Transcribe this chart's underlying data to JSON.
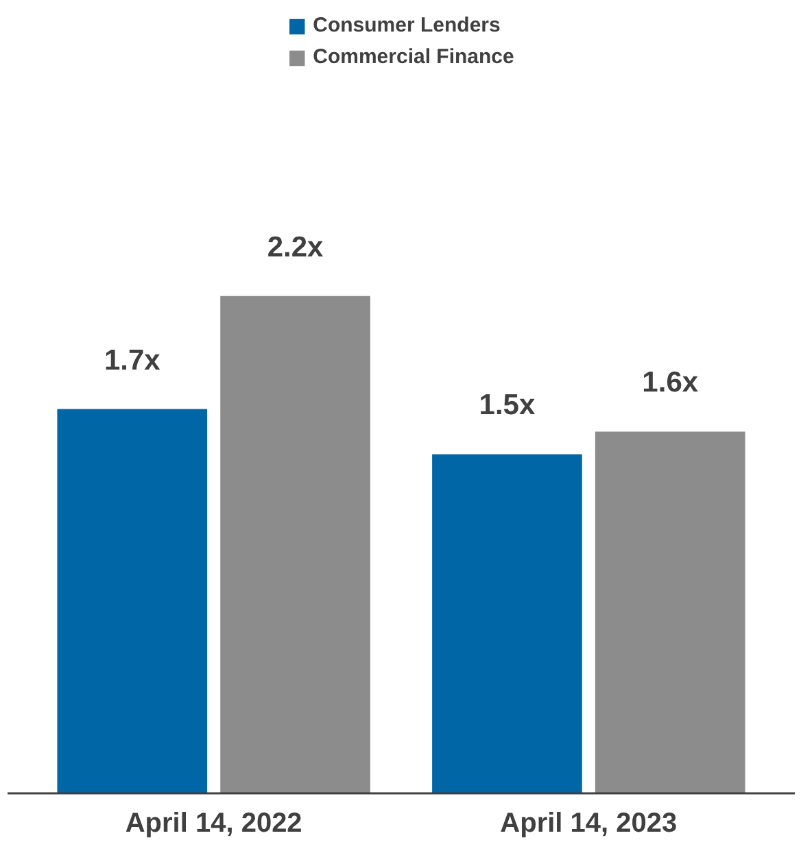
{
  "chart_data": {
    "type": "bar",
    "categories": [
      "April 14, 2022",
      "April 14, 2023"
    ],
    "series": [
      {
        "name": "Consumer Lenders",
        "color": "#0066a6",
        "values": [
          1.7,
          1.5
        ],
        "value_labels": [
          "1.7x",
          "1.5x"
        ]
      },
      {
        "name": "Commercial Finance",
        "color": "#8c8c8c",
        "values": [
          2.2,
          1.6
        ],
        "value_labels": [
          "2.2x",
          "1.6x"
        ]
      }
    ],
    "legend": "top",
    "grid": false
  }
}
